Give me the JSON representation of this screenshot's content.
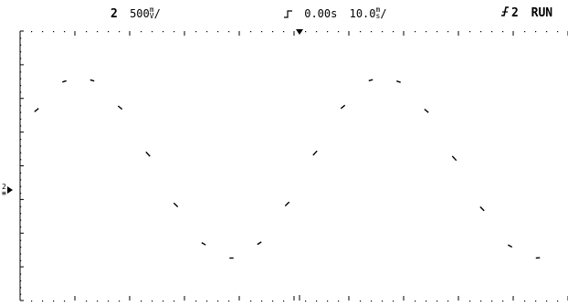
{
  "status_bar": {
    "channel": {
      "number": "2",
      "scale_value": "500",
      "scale_unit_top": "m",
      "scale_unit_bottom": "V",
      "separator": "/"
    },
    "timebase": {
      "trigger_icon": "trigger-edge-rising-icon",
      "delay": "0.00s",
      "scale_value": "10.0",
      "scale_unit_top": "m",
      "scale_unit_bottom": "s",
      "separator": "/"
    },
    "trigger": {
      "source_icon": "trigger-slope-icon",
      "source": "2",
      "state": "RUN"
    }
  },
  "display": {
    "channel_marker": {
      "number": "2",
      "ground_symbol": "≡",
      "icon": "channel-ground-arrow-icon"
    }
  },
  "colors": {
    "background": "#ffffff",
    "trace": "#000000",
    "graticule": "#000000"
  }
}
